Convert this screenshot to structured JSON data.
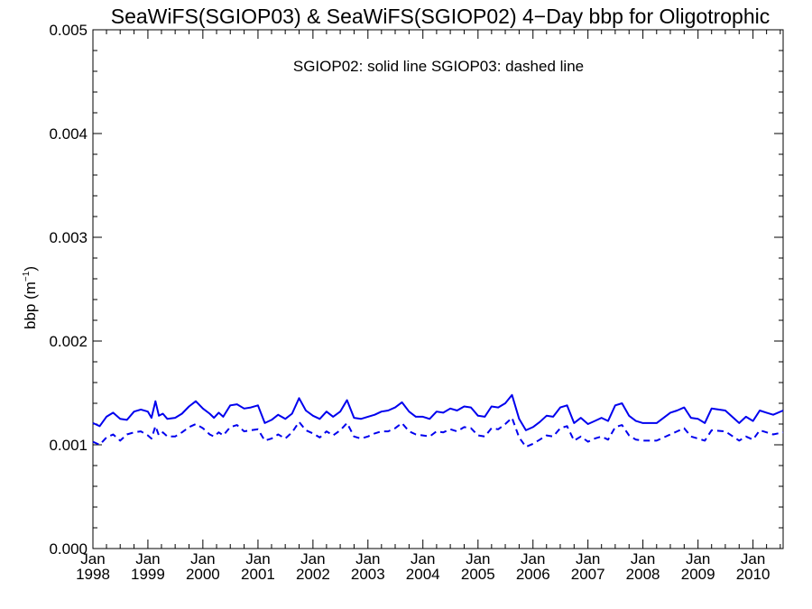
{
  "chart_data": {
    "type": "line",
    "title": "SeaWiFS(SGIOP03) & SeaWiFS(SGIOP02) 4−Day bbp for Oligotrophic",
    "annotation": "SGIOP02: solid line   SGIOP03: dashed line",
    "ylabel": "bbp (m",
    "ylabel_sup": "−1",
    "ylabel_close": ")",
    "ylim": [
      0.0,
      0.005
    ],
    "xlim": [
      "1998-01-01",
      "2010-07-20"
    ],
    "yticks": [
      0.0,
      0.001,
      0.002,
      0.003,
      0.004,
      0.005
    ],
    "ytick_labels": [
      "0.000",
      "0.001",
      "0.002",
      "0.003",
      "0.004",
      "0.005"
    ],
    "xticks": [
      {
        "date": "1998-01-01",
        "month": "Jan",
        "year": "1998"
      },
      {
        "date": "1999-01-01",
        "month": "Jan",
        "year": "1999"
      },
      {
        "date": "2000-01-01",
        "month": "Jan",
        "year": "2000"
      },
      {
        "date": "2001-01-01",
        "month": "Jan",
        "year": "2001"
      },
      {
        "date": "2002-01-01",
        "month": "Jan",
        "year": "2002"
      },
      {
        "date": "2003-01-01",
        "month": "Jan",
        "year": "2003"
      },
      {
        "date": "2004-01-01",
        "month": "Jan",
        "year": "2004"
      },
      {
        "date": "2005-01-01",
        "month": "Jan",
        "year": "2005"
      },
      {
        "date": "2006-01-01",
        "month": "Jan",
        "year": "2006"
      },
      {
        "date": "2007-01-01",
        "month": "Jan",
        "year": "2007"
      },
      {
        "date": "2008-01-01",
        "month": "Jan",
        "year": "2008"
      },
      {
        "date": "2009-01-01",
        "month": "Jan",
        "year": "2009"
      },
      {
        "date": "2010-01-01",
        "month": "Jan",
        "year": "2010"
      }
    ],
    "line_color": "#0000ee",
    "series": [
      {
        "name": "SGIOP02",
        "style": "solid",
        "x": [
          "1998-01-01",
          "1998-02-15",
          "1998-04-01",
          "1998-05-15",
          "1998-07-01",
          "1998-08-15",
          "1998-10-01",
          "1998-11-15",
          "1999-01-01",
          "1999-01-25",
          "1999-02-20",
          "1999-03-15",
          "1999-04-10",
          "1999-05-10",
          "1999-07-01",
          "1999-08-15",
          "1999-10-01",
          "1999-11-15",
          "2000-01-01",
          "2000-02-15",
          "2000-03-15",
          "2000-04-15",
          "2000-05-15",
          "2000-07-01",
          "2000-08-15",
          "2000-10-01",
          "2000-11-15",
          "2001-01-01",
          "2001-02-15",
          "2001-04-01",
          "2001-05-15",
          "2001-07-01",
          "2001-08-15",
          "2001-10-01",
          "2001-11-15",
          "2002-01-01",
          "2002-02-15",
          "2002-04-01",
          "2002-05-15",
          "2002-07-01",
          "2002-08-15",
          "2002-10-01",
          "2002-11-15",
          "2003-01-01",
          "2003-02-15",
          "2003-04-01",
          "2003-05-15",
          "2003-07-01",
          "2003-08-15",
          "2003-10-01",
          "2003-11-15",
          "2004-01-01",
          "2004-02-15",
          "2004-04-01",
          "2004-05-15",
          "2004-07-01",
          "2004-08-15",
          "2004-10-01",
          "2004-11-15",
          "2005-01-01",
          "2005-02-15",
          "2005-04-01",
          "2005-05-15",
          "2005-07-01",
          "2005-08-15",
          "2005-10-01",
          "2005-11-15",
          "2006-01-01",
          "2006-02-15",
          "2006-04-01",
          "2006-05-15",
          "2006-07-01",
          "2006-08-15",
          "2006-10-01",
          "2006-11-15",
          "2007-01-01",
          "2007-02-15",
          "2007-04-01",
          "2007-05-15",
          "2007-07-01",
          "2007-08-15",
          "2007-10-01",
          "2007-11-15",
          "2008-01-01",
          "2008-04-01",
          "2008-07-01",
          "2008-08-15",
          "2008-10-01",
          "2008-11-15",
          "2009-01-01",
          "2009-02-15",
          "2009-04-01",
          "2009-07-01",
          "2009-10-01",
          "2009-11-15",
          "2010-01-01",
          "2010-02-15",
          "2010-04-01",
          "2010-05-15",
          "2010-07-20"
        ],
        "y": [
          0.00121,
          0.00118,
          0.00127,
          0.00131,
          0.00125,
          0.00124,
          0.00132,
          0.00134,
          0.00132,
          0.00126,
          0.00142,
          0.00128,
          0.0013,
          0.00125,
          0.00126,
          0.0013,
          0.00137,
          0.00142,
          0.00135,
          0.0013,
          0.00126,
          0.00131,
          0.00127,
          0.00138,
          0.00139,
          0.00135,
          0.00136,
          0.00138,
          0.00121,
          0.00124,
          0.00129,
          0.00125,
          0.0013,
          0.00145,
          0.00133,
          0.00128,
          0.00125,
          0.00132,
          0.00127,
          0.00132,
          0.00143,
          0.00126,
          0.00125,
          0.00127,
          0.00129,
          0.00132,
          0.00133,
          0.00136,
          0.00141,
          0.00132,
          0.00127,
          0.00127,
          0.00125,
          0.00132,
          0.00131,
          0.00135,
          0.00133,
          0.00137,
          0.00136,
          0.00128,
          0.00127,
          0.00137,
          0.00136,
          0.0014,
          0.00148,
          0.00125,
          0.00114,
          0.00117,
          0.00122,
          0.00128,
          0.00127,
          0.00136,
          0.00138,
          0.00121,
          0.00126,
          0.0012,
          0.00123,
          0.00126,
          0.00123,
          0.00138,
          0.0014,
          0.00128,
          0.00123,
          0.00121,
          0.00121,
          0.00131,
          0.00133,
          0.00136,
          0.00126,
          0.00125,
          0.00121,
          0.00135,
          0.00133,
          0.00121,
          0.00127,
          0.00123,
          0.00133,
          0.00131,
          0.00129,
          0.00133
        ]
      },
      {
        "name": "SGIOP03",
        "style": "dashed",
        "x": [
          "1998-01-01",
          "1998-02-15",
          "1998-04-01",
          "1998-05-15",
          "1998-07-01",
          "1998-08-15",
          "1998-10-01",
          "1998-11-15",
          "1999-01-01",
          "1999-01-25",
          "1999-02-20",
          "1999-03-15",
          "1999-04-10",
          "1999-05-10",
          "1999-07-01",
          "1999-08-15",
          "1999-10-01",
          "1999-11-15",
          "2000-01-01",
          "2000-02-15",
          "2000-03-15",
          "2000-04-15",
          "2000-05-15",
          "2000-07-01",
          "2000-08-15",
          "2000-10-01",
          "2000-11-15",
          "2001-01-01",
          "2001-02-15",
          "2001-04-01",
          "2001-05-15",
          "2001-07-01",
          "2001-08-15",
          "2001-10-01",
          "2001-11-15",
          "2002-01-01",
          "2002-02-15",
          "2002-04-01",
          "2002-05-15",
          "2002-07-01",
          "2002-08-15",
          "2002-10-01",
          "2002-11-15",
          "2003-01-01",
          "2003-02-15",
          "2003-04-01",
          "2003-05-15",
          "2003-07-01",
          "2003-08-15",
          "2003-10-01",
          "2003-11-15",
          "2004-01-01",
          "2004-02-15",
          "2004-04-01",
          "2004-05-15",
          "2004-07-01",
          "2004-08-15",
          "2004-10-01",
          "2004-11-15",
          "2005-01-01",
          "2005-02-15",
          "2005-04-01",
          "2005-05-15",
          "2005-07-01",
          "2005-08-15",
          "2005-10-01",
          "2005-11-15",
          "2006-01-01",
          "2006-02-15",
          "2006-04-01",
          "2006-05-15",
          "2006-07-01",
          "2006-08-15",
          "2006-10-01",
          "2006-11-15",
          "2007-01-01",
          "2007-02-15",
          "2007-04-01",
          "2007-05-15",
          "2007-07-01",
          "2007-08-15",
          "2007-10-01",
          "2007-11-15",
          "2008-01-01",
          "2008-04-01",
          "2008-07-01",
          "2008-08-15",
          "2008-10-01",
          "2008-11-15",
          "2009-01-01",
          "2009-02-15",
          "2009-04-01",
          "2009-07-01",
          "2009-10-01",
          "2009-11-15",
          "2010-01-01",
          "2010-02-15",
          "2010-04-01",
          "2010-05-15",
          "2010-07-20"
        ],
        "y": [
          0.00103,
          0.001,
          0.00107,
          0.0011,
          0.00104,
          0.0011,
          0.00112,
          0.00113,
          0.00109,
          0.00106,
          0.00118,
          0.00109,
          0.00112,
          0.00108,
          0.00108,
          0.00112,
          0.00117,
          0.0012,
          0.00116,
          0.0011,
          0.00108,
          0.00112,
          0.00109,
          0.00117,
          0.00119,
          0.00113,
          0.00114,
          0.00115,
          0.00104,
          0.00106,
          0.0011,
          0.00106,
          0.00112,
          0.00122,
          0.00114,
          0.00111,
          0.00107,
          0.00113,
          0.00109,
          0.00114,
          0.00121,
          0.00108,
          0.00106,
          0.00108,
          0.00111,
          0.00113,
          0.00113,
          0.00116,
          0.00121,
          0.00113,
          0.0011,
          0.00109,
          0.00108,
          0.00113,
          0.00112,
          0.00115,
          0.00113,
          0.00117,
          0.00116,
          0.00109,
          0.00108,
          0.00116,
          0.00115,
          0.0012,
          0.00126,
          0.00107,
          0.00098,
          0.00101,
          0.00105,
          0.00109,
          0.00108,
          0.00116,
          0.00118,
          0.00104,
          0.00108,
          0.00103,
          0.00106,
          0.00108,
          0.00105,
          0.00117,
          0.00119,
          0.00109,
          0.00105,
          0.00104,
          0.00104,
          0.0011,
          0.00113,
          0.00116,
          0.00108,
          0.00106,
          0.00104,
          0.00114,
          0.00113,
          0.00104,
          0.00108,
          0.00105,
          0.00114,
          0.00112,
          0.0011,
          0.00112
        ]
      }
    ],
    "grid": false,
    "legend": "none"
  }
}
